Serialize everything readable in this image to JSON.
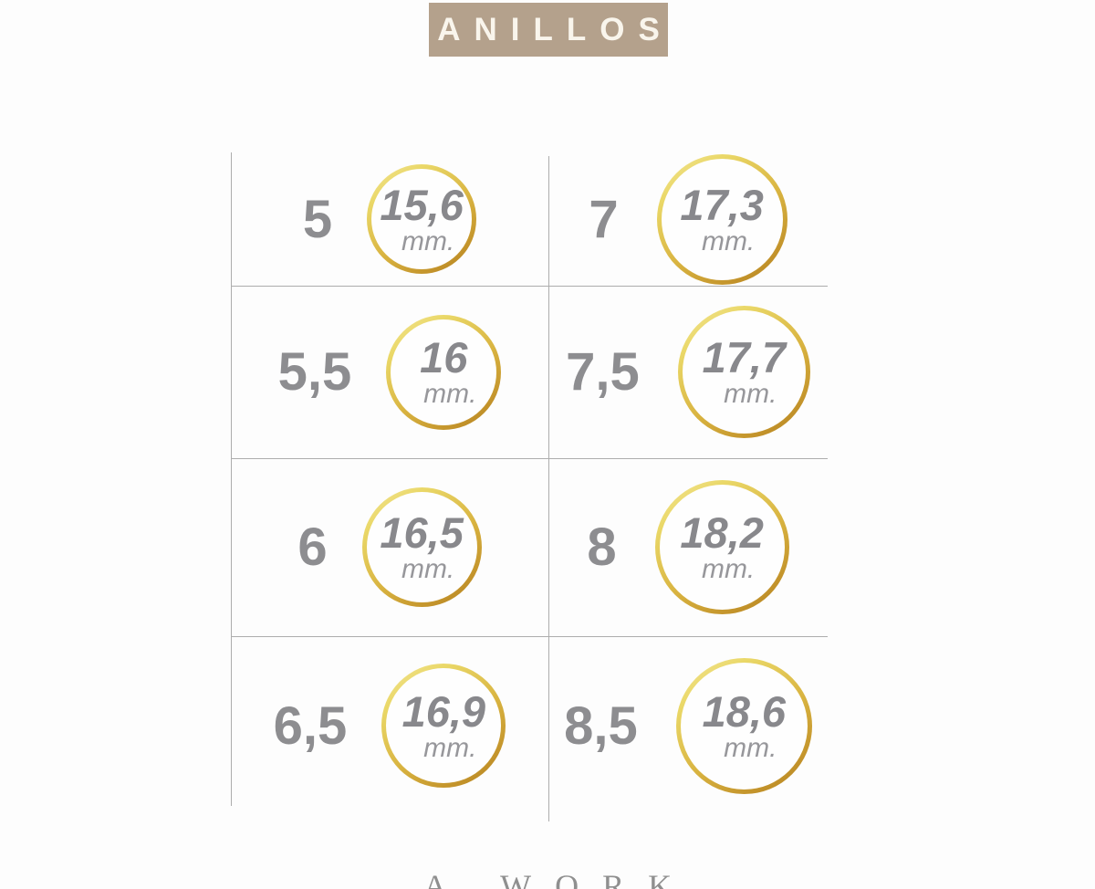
{
  "header": {
    "title": "ANILLOS"
  },
  "chart_data": {
    "type": "table",
    "title": "ANILLOS",
    "description": "Ring size chart: ring size number mapped to inner diameter in mm, shown inside gold rings scaled to size",
    "categories": [
      "5",
      "5,5",
      "6",
      "6,5",
      "7",
      "7,5",
      "8",
      "8,5"
    ],
    "values": [
      15.6,
      16,
      16.5,
      16.9,
      17.3,
      17.7,
      18.2,
      18.6
    ],
    "unit": "mm",
    "layout": "4 rows x 2 columns; sizes 5-6,5 in left column, 7-8,5 in right column; thin gray grid lines, no outer right/top/bottom border"
  },
  "table": {
    "cells": [
      {
        "size": "5",
        "value": "15,6",
        "unit": "mm."
      },
      {
        "size": "7",
        "value": "17,3",
        "unit": "mm."
      },
      {
        "size": "5,5",
        "value": "16",
        "unit": "mm."
      },
      {
        "size": "7,5",
        "value": "17,7",
        "unit": "mm."
      },
      {
        "size": "6",
        "value": "16,5",
        "unit": "mm."
      },
      {
        "size": "8",
        "value": "18,2",
        "unit": "mm."
      },
      {
        "size": "6,5",
        "value": "16,9",
        "unit": "mm."
      },
      {
        "size": "8,5",
        "value": "18,6",
        "unit": "mm."
      }
    ]
  },
  "footer": {
    "brand": "A WORK"
  },
  "colors": {
    "banner_bg": "#b4a18c",
    "banner_text": "#f9f5ec",
    "gold_light": "#f4e69c",
    "gold_dark": "#b1821f",
    "grid_line": "#adadad",
    "text_gray": "#8d8d90"
  }
}
